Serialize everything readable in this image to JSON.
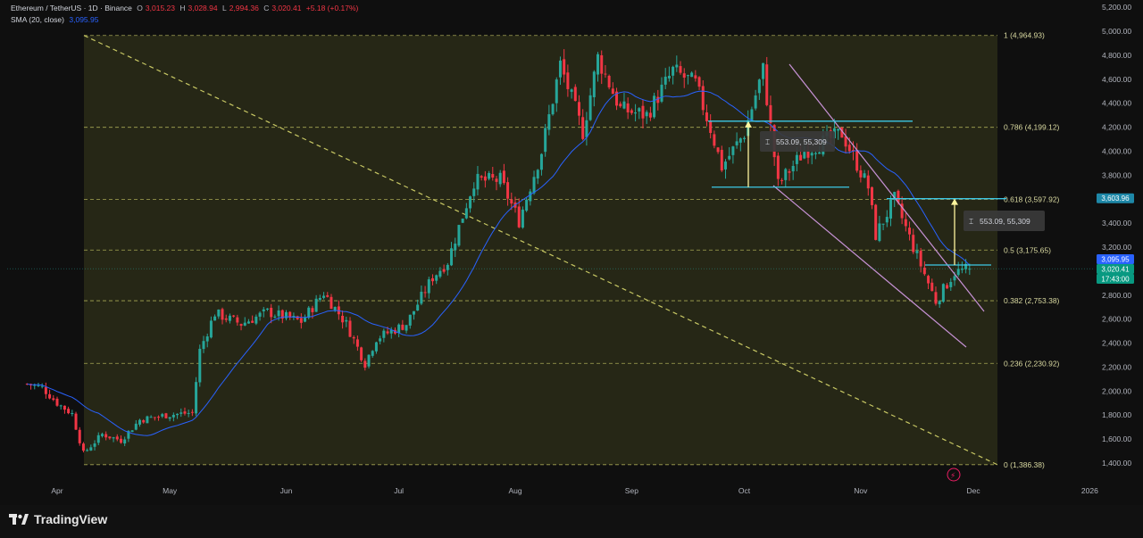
{
  "header": {
    "symbol": "Ethereum / TetherUS · 1D · Binance",
    "o_label": "O",
    "o_value": "3,015.23",
    "h_label": "H",
    "h_value": "3,028.94",
    "l_label": "L",
    "l_value": "2,994.36",
    "c_label": "C",
    "c_value": "3,020.41",
    "change": "+5.18 (+0.17%)",
    "sma_label": "SMA (20, close)",
    "sma_value": "3,095.95"
  },
  "footer": {
    "brand": "TradingView"
  },
  "colors": {
    "up": "#26a69a",
    "down": "#f23645",
    "sma": "#2962ff",
    "fib_zone": "#2a2c17",
    "fib_line": "#c8c864",
    "channel": "#c792d6",
    "level": "#3cc8e6",
    "arrow": "#fff59d"
  },
  "chart_data": {
    "type": "candlestick",
    "title": "Ethereum / TetherUS · 1D · Binance",
    "x_ticks": [
      "Apr",
      "May",
      "Jun",
      "Jul",
      "Aug",
      "Sep",
      "Oct",
      "Nov",
      "Dec",
      "2026"
    ],
    "y_ticks": [
      "1,400.00",
      "1,600.00",
      "1,800.00",
      "2,000.00",
      "2,200.00",
      "2,400.00",
      "2,600.00",
      "2,800.00",
      "3,000.00",
      "3,200.00",
      "3,400.00",
      "3,600.00",
      "3,800.00",
      "4,000.00",
      "4,200.00",
      "4,400.00",
      "4,600.00",
      "4,800.00",
      "5,000.00",
      "5,200.00"
    ],
    "ylim": [
      1300,
      5240
    ],
    "close_path": [
      [
        "2025-03-24",
        2060
      ],
      [
        "2025-03-28",
        2030
      ],
      [
        "2025-04-01",
        1900
      ],
      [
        "2025-04-05",
        1810
      ],
      [
        "2025-04-08",
        1480
      ],
      [
        "2025-04-13",
        1640
      ],
      [
        "2025-04-18",
        1590
      ],
      [
        "2025-04-23",
        1760
      ],
      [
        "2025-04-30",
        1800
      ],
      [
        "2025-05-07",
        1820
      ],
      [
        "2025-05-09",
        2340
      ],
      [
        "2025-05-13",
        2650
      ],
      [
        "2025-05-20",
        2560
      ],
      [
        "2025-05-27",
        2660
      ],
      [
        "2025-06-05",
        2580
      ],
      [
        "2025-06-11",
        2820
      ],
      [
        "2025-06-17",
        2560
      ],
      [
        "2025-06-22",
        2230
      ],
      [
        "2025-06-25",
        2440
      ],
      [
        "2025-07-03",
        2560
      ],
      [
        "2025-07-10",
        2950
      ],
      [
        "2025-07-14",
        3080
      ],
      [
        "2025-07-21",
        3750
      ],
      [
        "2025-07-28",
        3760
      ],
      [
        "2025-08-02",
        3420
      ],
      [
        "2025-08-08",
        4000
      ],
      [
        "2025-08-13",
        4720
      ],
      [
        "2025-08-19",
        4160
      ],
      [
        "2025-08-23",
        4780
      ],
      [
        "2025-08-29",
        4350
      ],
      [
        "2025-09-05",
        4300
      ],
      [
        "2025-09-12",
        4670
      ],
      [
        "2025-09-18",
        4560
      ],
      [
        "2025-09-22",
        4190
      ],
      [
        "2025-09-25",
        3870
      ],
      [
        "2025-10-01",
        4150
      ],
      [
        "2025-10-06",
        4680
      ],
      [
        "2025-10-10",
        3720
      ],
      [
        "2025-10-17",
        4000
      ],
      [
        "2025-10-27",
        4150
      ],
      [
        "2025-11-03",
        3700
      ],
      [
        "2025-11-05",
        3300
      ],
      [
        "2025-11-10",
        3600
      ],
      [
        "2025-11-15",
        3200
      ],
      [
        "2025-11-21",
        2750
      ],
      [
        "2025-11-26",
        2990
      ],
      [
        "2025-11-30",
        3020
      ]
    ],
    "last_close": 3020.41,
    "sma_20_last": 3095.95,
    "fib_retracement": [
      {
        "level": "1",
        "price": 4964.93,
        "label": "1 (4,964.93)"
      },
      {
        "level": "0.786",
        "price": 4199.12,
        "label": "0.786 (4,199.12)"
      },
      {
        "level": "0.618",
        "price": 3597.92,
        "label": "0.618 (3,597.92)"
      },
      {
        "level": "0.5",
        "price": 3175.65,
        "label": "0.5 (3,175.65)"
      },
      {
        "level": "0.382",
        "price": 2753.38,
        "label": "0.382 (2,753.38)"
      },
      {
        "level": "0.236",
        "price": 2230.92,
        "label": "0.236 (2,230.92)"
      },
      {
        "level": "0",
        "price": 1386.38,
        "label": "0 (1,386.38)"
      }
    ],
    "measure_label_1": "553.09, 55,309",
    "measure_label_2": "553.09, 55,309",
    "price_tags": [
      {
        "price": 3603.96,
        "text": "3,603.96",
        "color": "#1e88a8"
      },
      {
        "price": 3095.95,
        "text": "3,095.95",
        "color": "#2962ff"
      },
      {
        "price": 3020.41,
        "text": "3,020.41",
        "color": "#089981"
      },
      {
        "price": 2980.0,
        "text": "17:43:00",
        "color": "#089981"
      }
    ]
  }
}
